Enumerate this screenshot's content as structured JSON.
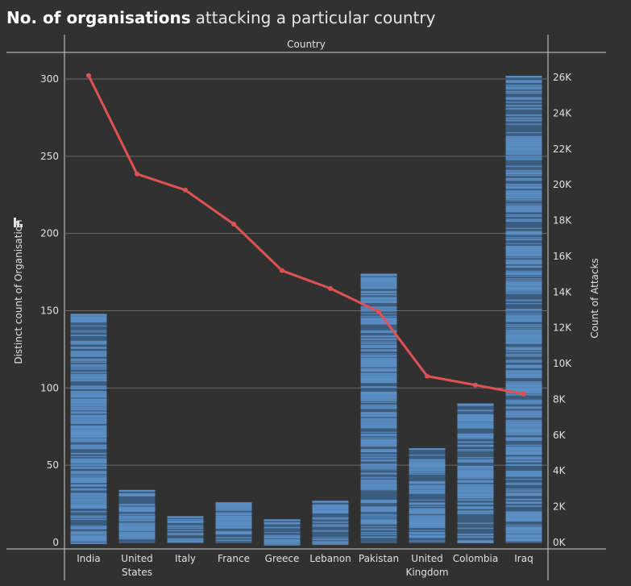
{
  "chart_data": {
    "type": "bar",
    "title": "No. of organisations",
    "subtitle": "attacking a particular country",
    "column_header": "Country",
    "ylabel": "Distinct count of Organisation",
    "y2label": "Count of Attacks",
    "categories": [
      [
        "India"
      ],
      [
        "United",
        "States"
      ],
      [
        "Italy"
      ],
      [
        "France"
      ],
      [
        "Greece"
      ],
      [
        "Lebanon"
      ],
      [
        "Pakistan"
      ],
      [
        "United",
        "Kingdom"
      ],
      [
        "Colombia"
      ],
      [
        "Iraq"
      ]
    ],
    "series": [
      {
        "axis": "left",
        "type": "bar",
        "values": [
          148,
          34,
          17,
          26,
          15,
          27,
          174,
          61,
          90,
          302
        ]
      },
      {
        "axis": "right",
        "type": "line",
        "values": [
          26100,
          20600,
          19700,
          17800,
          15200,
          14200,
          12900,
          9300,
          8800,
          8300
        ]
      }
    ],
    "ylim": [
      0,
      310
    ],
    "y2lim": [
      0,
      26600
    ],
    "yticks": [
      0,
      50,
      100,
      150,
      200,
      250,
      300
    ],
    "y2ticks": [
      0,
      2000,
      4000,
      6000,
      8000,
      10000,
      12000,
      14000,
      16000,
      18000,
      20000,
      22000,
      24000,
      26000
    ],
    "y2ticklabels": [
      "0K",
      "2K",
      "4K",
      "6K",
      "8K",
      "10K",
      "12K",
      "14K",
      "16K",
      "18K",
      "20K",
      "22K",
      "24K",
      "26K"
    ],
    "grid": true,
    "colors": {
      "bar": "#3c5c7d",
      "bar_stripe": "#5a8ec4",
      "line": "#e05252",
      "grid": "#6a6a6a",
      "background": "#313131"
    }
  }
}
